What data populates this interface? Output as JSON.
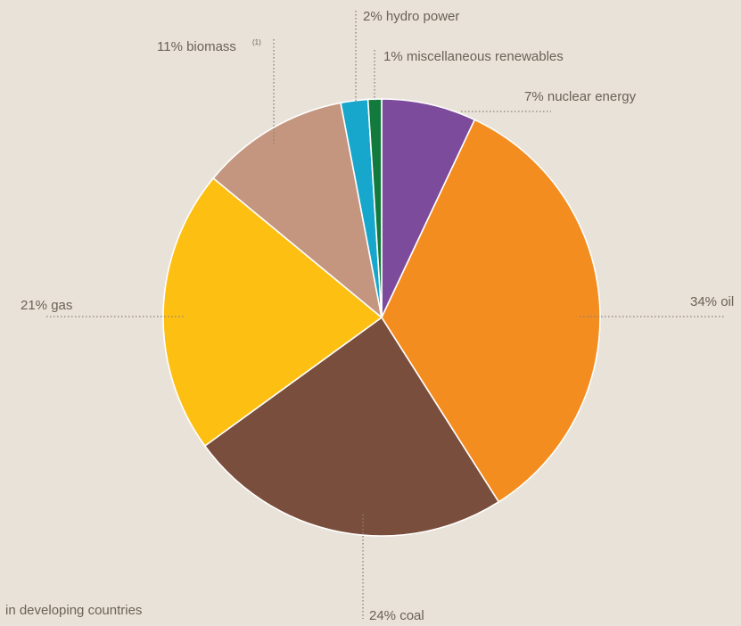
{
  "chart_data": {
    "type": "pie",
    "slices": [
      {
        "key": "nuclear",
        "value": 7,
        "label": "7% nuclear energy",
        "color": "#7c4b9b"
      },
      {
        "key": "oil",
        "value": 34,
        "label": "34% oil",
        "color": "#f48d20"
      },
      {
        "key": "coal",
        "value": 24,
        "label": "24% coal",
        "color": "#7a4e3c"
      },
      {
        "key": "gas",
        "value": 21,
        "label": "21% gas",
        "color": "#fdbf12"
      },
      {
        "key": "biomass",
        "value": 11,
        "label": "11% biomass",
        "footnote_marker": "(1)",
        "color": "#c4967f"
      },
      {
        "key": "hydro",
        "value": 2,
        "label": "2% hydro power",
        "color": "#17a6cc"
      },
      {
        "key": "misc",
        "value": 1,
        "label": "1% miscellaneous renewables",
        "color": "#137a3d"
      }
    ],
    "footnote": "in developing countries"
  }
}
